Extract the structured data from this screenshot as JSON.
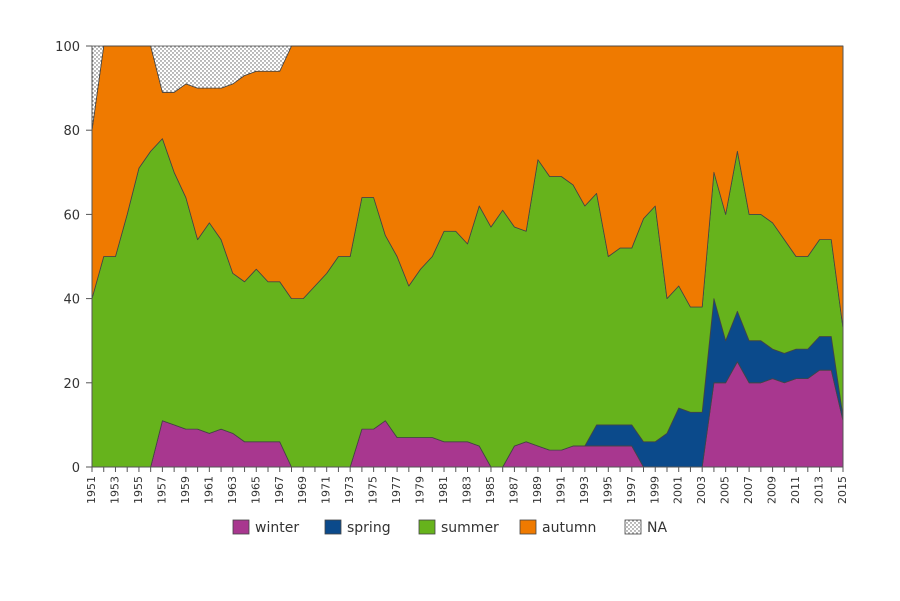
{
  "chart_data": {
    "type": "area",
    "stacked": true,
    "title": "",
    "xlabel": "",
    "ylabel": "",
    "ylim": [
      0,
      100
    ],
    "yticks": [
      "0",
      "20",
      "40",
      "60",
      "80",
      "100"
    ],
    "x": [
      1951,
      1952,
      1953,
      1954,
      1955,
      1956,
      1957,
      1958,
      1959,
      1960,
      1961,
      1962,
      1963,
      1964,
      1965,
      1966,
      1967,
      1968,
      1969,
      1970,
      1971,
      1972,
      1973,
      1974,
      1975,
      1976,
      1977,
      1978,
      1979,
      1980,
      1981,
      1982,
      1983,
      1984,
      1985,
      1986,
      1987,
      1988,
      1989,
      1990,
      1991,
      1992,
      1993,
      1994,
      1995,
      1996,
      1997,
      1998,
      1999,
      2000,
      2001,
      2002,
      2003,
      2004,
      2005,
      2006,
      2007,
      2008,
      2009,
      2010,
      2011,
      2012,
      2013,
      2014,
      2015
    ],
    "xticks": [
      "1951",
      "1953",
      "1955",
      "1957",
      "1959",
      "1961",
      "1963",
      "1965",
      "1967",
      "1969",
      "1971",
      "1973",
      "1975",
      "1977",
      "1979",
      "1981",
      "1983",
      "1985",
      "1987",
      "1989",
      "1991",
      "1993",
      "1995",
      "1997",
      "1999",
      "2001",
      "2003",
      "2005",
      "2007",
      "2009",
      "2011",
      "2013",
      "2015"
    ],
    "series": [
      {
        "name": "winter",
        "color": "#a8378f",
        "values": [
          0,
          0,
          0,
          0,
          0,
          0,
          11,
          10,
          9,
          9,
          8,
          9,
          8,
          6,
          6,
          6,
          6,
          0,
          0,
          0,
          0,
          0,
          0,
          9,
          9,
          11,
          7,
          7,
          7,
          7,
          6,
          6,
          6,
          5,
          0,
          0,
          5,
          6,
          5,
          4,
          4,
          5,
          5,
          5,
          5,
          5,
          5,
          0,
          0,
          0,
          0,
          0,
          0,
          20,
          20,
          25,
          20,
          20,
          21,
          20,
          21,
          21,
          23,
          23,
          11
        ]
      },
      {
        "name": "spring",
        "color": "#0b4a8b",
        "values": [
          0,
          0,
          0,
          0,
          0,
          0,
          0,
          0,
          0,
          0,
          0,
          0,
          0,
          0,
          0,
          0,
          0,
          0,
          0,
          0,
          0,
          0,
          0,
          0,
          0,
          0,
          0,
          0,
          0,
          0,
          0,
          0,
          0,
          0,
          0,
          0,
          0,
          0,
          0,
          0,
          0,
          0,
          0,
          5,
          5,
          5,
          5,
          6,
          6,
          8,
          14,
          13,
          13,
          20,
          10,
          12,
          10,
          10,
          7,
          7,
          7,
          7,
          8,
          8,
          1
        ]
      },
      {
        "name": "summer",
        "color": "#66b31c",
        "values": [
          40,
          50,
          50,
          60,
          71,
          75,
          67,
          60,
          55,
          45,
          50,
          45,
          38,
          38,
          41,
          38,
          38,
          40,
          40,
          43,
          46,
          50,
          50,
          55,
          55,
          44,
          43,
          36,
          40,
          43,
          50,
          50,
          47,
          57,
          57,
          61,
          52,
          50,
          68,
          65,
          65,
          62,
          57,
          55,
          40,
          42,
          42,
          53,
          56,
          32,
          29,
          25,
          25,
          30,
          30,
          38,
          30,
          30,
          30,
          27,
          22,
          22,
          23,
          23,
          21
        ]
      },
      {
        "name": "autumn",
        "color": "#ef7a00",
        "values": [
          40,
          50,
          50,
          40,
          29,
          25,
          11,
          19,
          27,
          36,
          32,
          36,
          45,
          49,
          47,
          50,
          50,
          60,
          60,
          57,
          54,
          50,
          50,
          36,
          36,
          45,
          50,
          57,
          53,
          50,
          44,
          44,
          47,
          38,
          43,
          39,
          43,
          44,
          27,
          31,
          31,
          33,
          38,
          35,
          50,
          48,
          48,
          41,
          38,
          60,
          57,
          62,
          62,
          30,
          40,
          25,
          40,
          40,
          42,
          46,
          50,
          50,
          46,
          46,
          67
        ]
      },
      {
        "name": "NA",
        "color": "#ffffff",
        "pattern": "dots",
        "values": [
          20,
          0,
          0,
          0,
          0,
          0,
          11,
          11,
          9,
          10,
          10,
          10,
          9,
          7,
          6,
          6,
          6,
          0,
          0,
          0,
          0,
          0,
          0,
          0,
          0,
          0,
          0,
          0,
          0,
          0,
          0,
          0,
          0,
          0,
          0,
          0,
          0,
          0,
          0,
          0,
          0,
          0,
          0,
          0,
          0,
          0,
          0,
          0,
          0,
          0,
          0,
          0,
          0,
          0,
          0,
          0,
          0,
          0,
          0,
          0,
          0,
          0,
          0,
          0,
          0
        ]
      }
    ],
    "legend": {
      "position": "bottom",
      "entries": [
        "winter",
        "spring",
        "summer",
        "autumn",
        "NA"
      ]
    },
    "grid": false
  }
}
